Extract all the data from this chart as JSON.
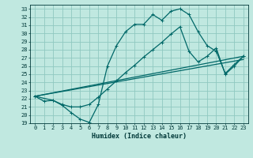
{
  "xlabel": "Humidex (Indice chaleur)",
  "bg_color": "#c0e8e0",
  "grid_color": "#90c8c0",
  "line_color": "#006868",
  "xlim": [
    -0.5,
    23.5
  ],
  "ylim": [
    19,
    33.5
  ],
  "xticks": [
    0,
    1,
    2,
    3,
    4,
    5,
    6,
    7,
    8,
    9,
    10,
    11,
    12,
    13,
    14,
    15,
    16,
    17,
    18,
    19,
    20,
    21,
    22,
    23
  ],
  "yticks": [
    19,
    20,
    21,
    22,
    23,
    24,
    25,
    26,
    27,
    28,
    29,
    30,
    31,
    32,
    33
  ],
  "line1_x": [
    0,
    1,
    2,
    3,
    4,
    5,
    6,
    7,
    8,
    9,
    10,
    11,
    12,
    13,
    14,
    15,
    16,
    17,
    18,
    19,
    20,
    21,
    22,
    23
  ],
  "line1_y": [
    22.3,
    21.7,
    21.8,
    21.2,
    20.3,
    19.5,
    19.1,
    21.3,
    26.0,
    28.5,
    30.2,
    31.1,
    31.1,
    32.3,
    31.6,
    32.7,
    33.0,
    32.3,
    30.2,
    28.5,
    27.8,
    25.1,
    26.2,
    27.2
  ],
  "line2_x": [
    0,
    2,
    3,
    4,
    5,
    6,
    7,
    8,
    9,
    10,
    11,
    12,
    13,
    14,
    15,
    16,
    17,
    18,
    19,
    20,
    21,
    22,
    23
  ],
  "line2_y": [
    22.3,
    21.8,
    21.3,
    21.0,
    21.0,
    21.3,
    22.2,
    23.2,
    24.2,
    25.2,
    26.1,
    27.1,
    28.0,
    28.9,
    29.9,
    30.8,
    27.8,
    26.5,
    27.2,
    28.2,
    25.0,
    26.0,
    27.2
  ],
  "line3_x": [
    0,
    23
  ],
  "line3_y": [
    22.3,
    27.2
  ],
  "line4_x": [
    0,
    23
  ],
  "line4_y": [
    22.3,
    27.2
  ]
}
